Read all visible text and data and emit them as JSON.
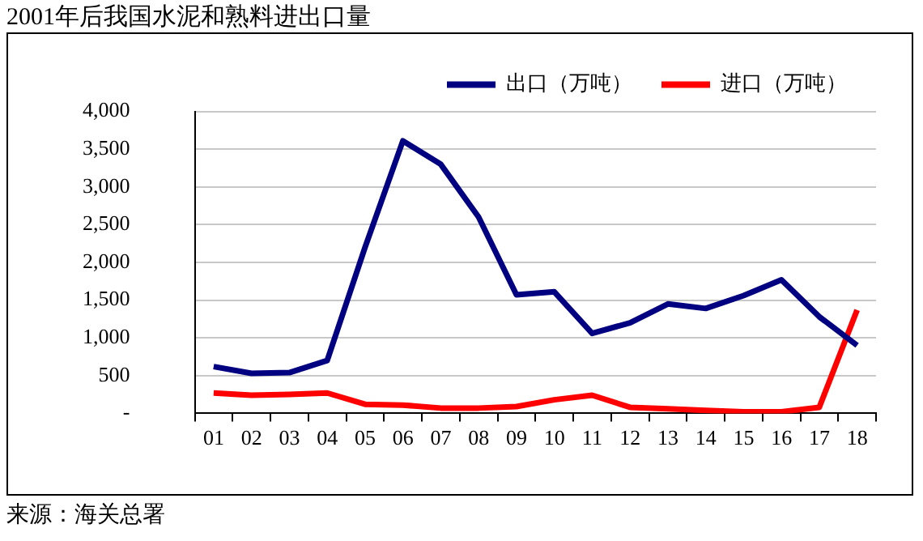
{
  "chart_data": {
    "type": "line",
    "title": "2001年后我国水泥和熟料进出口量",
    "categories": [
      "01",
      "02",
      "03",
      "04",
      "05",
      "06",
      "07",
      "08",
      "09",
      "10",
      "11",
      "12",
      "13",
      "14",
      "15",
      "16",
      "17",
      "18"
    ],
    "series": [
      {
        "name": "出口（万吨）",
        "color": "#000080",
        "values": [
          620,
          530,
          540,
          700,
          2200,
          3610,
          3300,
          2600,
          1570,
          1610,
          1060,
          1200,
          1450,
          1390,
          1560,
          1770,
          1280,
          900
        ]
      },
      {
        "name": "进口（万吨）",
        "color": "#ff0000",
        "values": [
          270,
          240,
          250,
          270,
          120,
          110,
          70,
          70,
          90,
          180,
          240,
          80,
          60,
          40,
          20,
          20,
          80,
          1370
        ]
      }
    ],
    "ylim": [
      0,
      4000
    ],
    "yticks": [
      {
        "value": 0,
        "label": "-"
      },
      {
        "value": 500,
        "label": "500"
      },
      {
        "value": 1000,
        "label": "1,000"
      },
      {
        "value": 1500,
        "label": "1,500"
      },
      {
        "value": 2000,
        "label": "2,000"
      },
      {
        "value": 2500,
        "label": "2,500"
      },
      {
        "value": 3000,
        "label": "3,000"
      },
      {
        "value": 3500,
        "label": "3,500"
      },
      {
        "value": 4000,
        "label": "4,000"
      }
    ],
    "grid": "y",
    "legend": "top right",
    "marker": "none",
    "line_style": "solid",
    "annotations": [
      "来源：海关总署"
    ]
  }
}
